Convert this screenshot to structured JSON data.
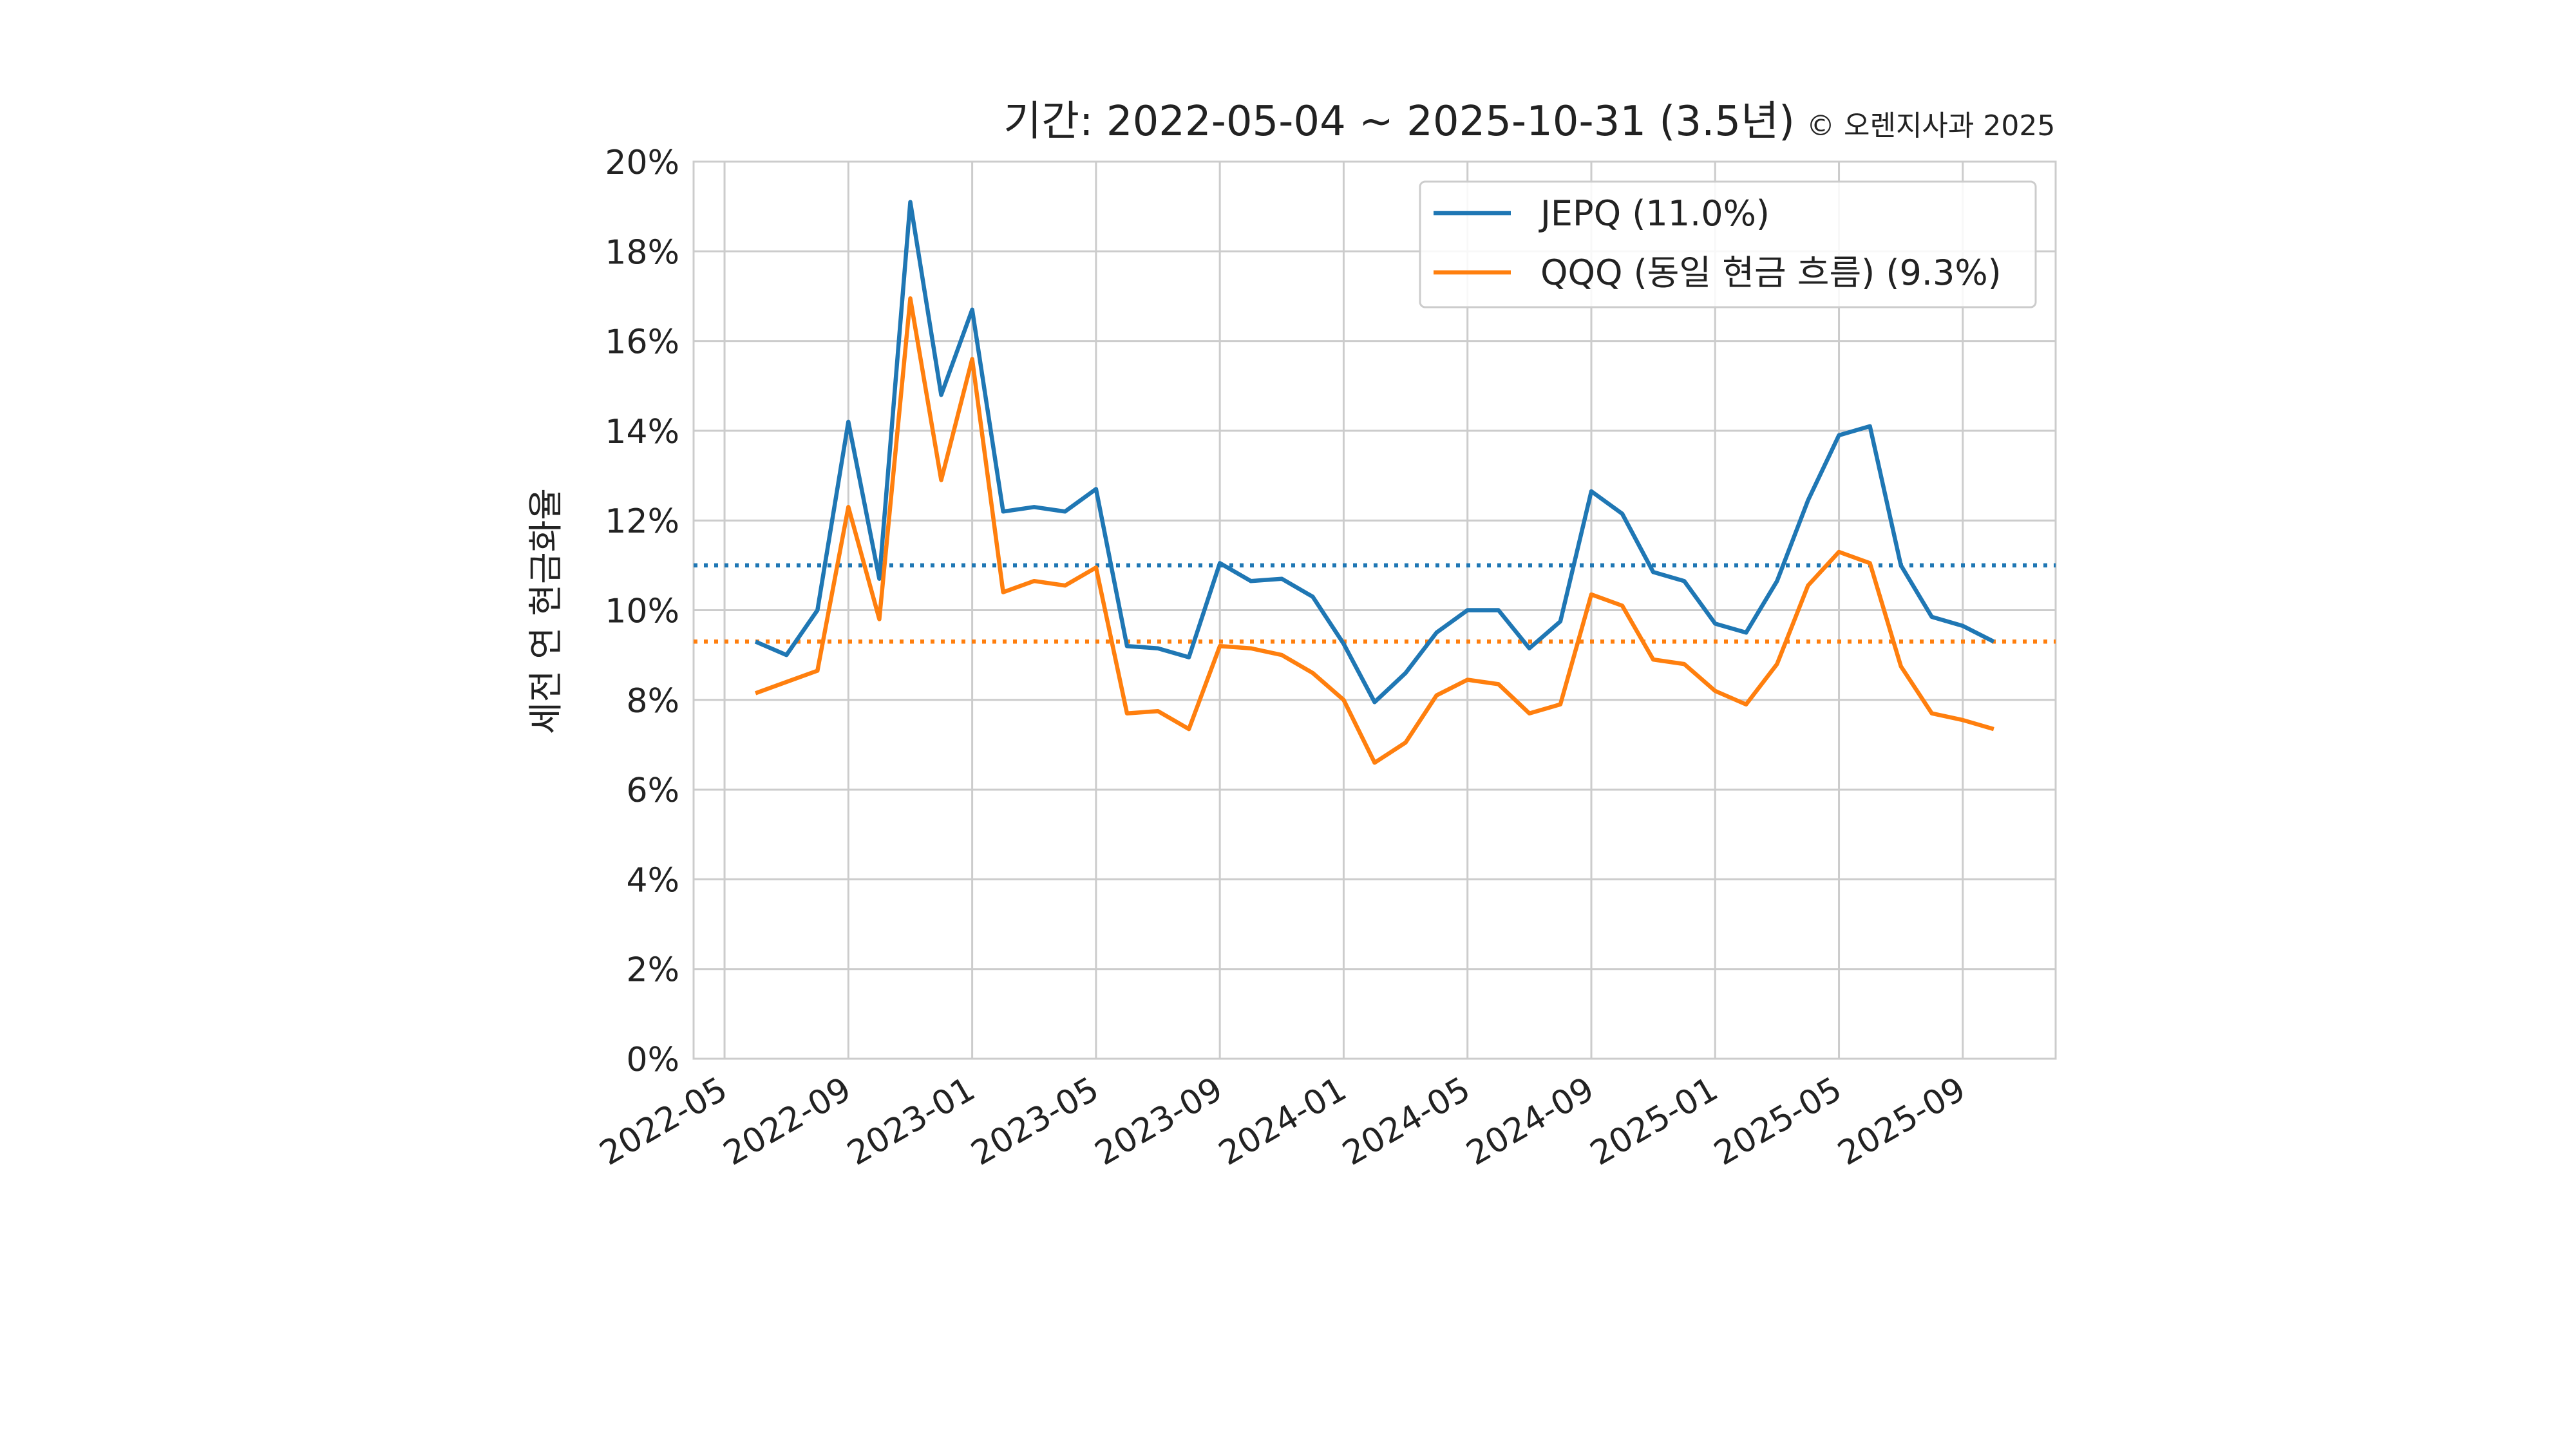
{
  "chart_data": {
    "type": "line",
    "title": "기간: 2022-05-04 ~ 2025-10-31 (3.5년)",
    "subtitle": "© 오렌지사과 2025",
    "y_label": "세전 연 현금화율",
    "x": [
      "2022-06",
      "2022-07",
      "2022-08",
      "2022-09",
      "2022-10",
      "2022-11",
      "2022-12",
      "2023-01",
      "2023-02",
      "2023-03",
      "2023-04",
      "2023-05",
      "2023-06",
      "2023-07",
      "2023-08",
      "2023-09",
      "2023-10",
      "2023-11",
      "2023-12",
      "2024-01",
      "2024-02",
      "2024-03",
      "2024-04",
      "2024-05",
      "2024-06",
      "2024-07",
      "2024-08",
      "2024-09",
      "2024-10",
      "2024-11",
      "2024-12",
      "2025-01",
      "2025-02",
      "2025-03",
      "2025-04",
      "2025-05",
      "2025-06",
      "2025-07",
      "2025-08",
      "2025-09",
      "2025-10"
    ],
    "series": [
      {
        "name": "JEPQ (11.0%)",
        "color": "#1f77b4",
        "mean": 11.0,
        "values": [
          9.3,
          9.0,
          10.0,
          14.2,
          10.7,
          19.1,
          14.8,
          16.7,
          12.2,
          12.3,
          12.2,
          12.7,
          9.2,
          9.15,
          8.95,
          11.05,
          10.65,
          10.7,
          10.3,
          9.25,
          7.95,
          8.6,
          9.5,
          10.0,
          10.0,
          9.15,
          9.75,
          12.65,
          12.15,
          10.85,
          10.65,
          9.7,
          9.5,
          10.65,
          12.45,
          13.9,
          14.1,
          11.0,
          9.85,
          9.65,
          9.3
        ]
      },
      {
        "name": "QQQ (동일 현금 흐름) (9.3%)",
        "color": "#ff7f0e",
        "mean": 9.3,
        "values": [
          8.15,
          8.4,
          8.65,
          12.3,
          9.8,
          16.95,
          12.9,
          15.6,
          10.4,
          10.65,
          10.55,
          10.95,
          7.7,
          7.75,
          7.35,
          9.2,
          9.15,
          9.0,
          8.6,
          8.0,
          6.6,
          7.05,
          8.1,
          8.45,
          8.35,
          7.7,
          7.9,
          10.35,
          10.1,
          8.9,
          8.8,
          8.2,
          7.9,
          8.8,
          10.55,
          11.3,
          11.05,
          8.75,
          7.7,
          7.55,
          7.35
        ]
      }
    ],
    "xlim": [
      "2022-04",
      "2025-12"
    ],
    "xticks": [
      "2022-05",
      "2022-09",
      "2023-01",
      "2023-05",
      "2023-09",
      "2024-01",
      "2024-05",
      "2024-09",
      "2025-01",
      "2025-05",
      "2025-09"
    ],
    "ylim": [
      0,
      20
    ],
    "yticks": [
      {
        "value": 0,
        "label": "0%"
      },
      {
        "value": 2,
        "label": "2%"
      },
      {
        "value": 4,
        "label": "4%"
      },
      {
        "value": 6,
        "label": "6%"
      },
      {
        "value": 8,
        "label": "8%"
      },
      {
        "value": 10,
        "label": "10%"
      },
      {
        "value": 12,
        "label": "12%"
      },
      {
        "value": 14,
        "label": "14%"
      },
      {
        "value": 16,
        "label": "16%"
      },
      {
        "value": 18,
        "label": "18%"
      },
      {
        "value": 20,
        "label": "20%"
      }
    ],
    "grid": true,
    "legend": "upper right"
  }
}
